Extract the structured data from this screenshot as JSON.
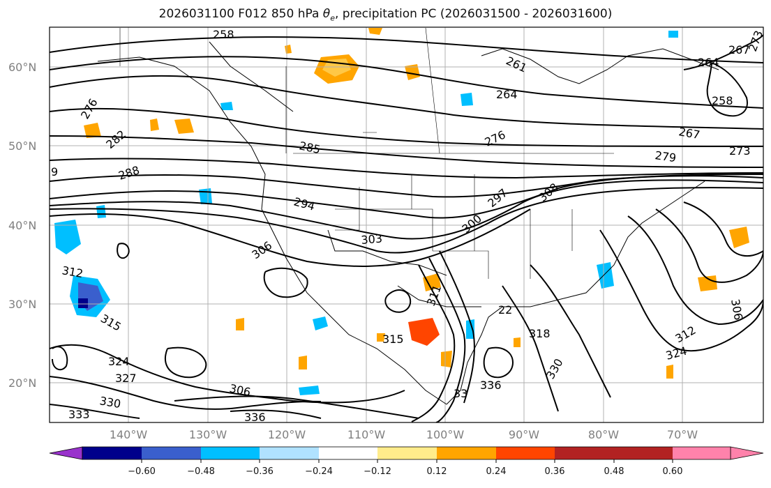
{
  "title": {
    "prefix": "2026031100 F012 850 hPa ",
    "theta": "θ",
    "theta_sub": "e",
    "suffix": ", precipitation PC (2026031500 - 2026031600)"
  },
  "lat_labels": [
    "60°N",
    "50°N",
    "40°N",
    "30°N",
    "20°N"
  ],
  "lon_labels": [
    "140°W",
    "130°W",
    "120°W",
    "110°W",
    "100°W",
    "90°W",
    "80°W",
    "70°W"
  ],
  "contour_labels": [
    "258",
    "261",
    "264",
    "267",
    "273",
    "264",
    "258",
    "276",
    "282",
    "276",
    "267",
    "279",
    "273",
    "285",
    "288",
    "9",
    "294",
    "297",
    "300",
    "306",
    "303",
    "308",
    "312",
    "315",
    "311",
    "315",
    "318",
    "324",
    "327",
    "330",
    "333",
    "306",
    "312",
    "306",
    "324",
    "330",
    "336",
    "336",
    "33",
    "22"
  ],
  "colorbar": {
    "ticks": [
      "−0.60",
      "−0.48",
      "−0.36",
      "−0.24",
      "−0.12",
      "0.12",
      "0.24",
      "0.36",
      "0.48",
      "0.60"
    ],
    "colors": [
      "#9932cc",
      "#00008b",
      "#3a5fcd",
      "#00bfff",
      "#b0e2ff",
      "#ffffff",
      "#ffec8b",
      "#ffa500",
      "#ff4500",
      "#b22222",
      "#ff82ab"
    ]
  }
}
